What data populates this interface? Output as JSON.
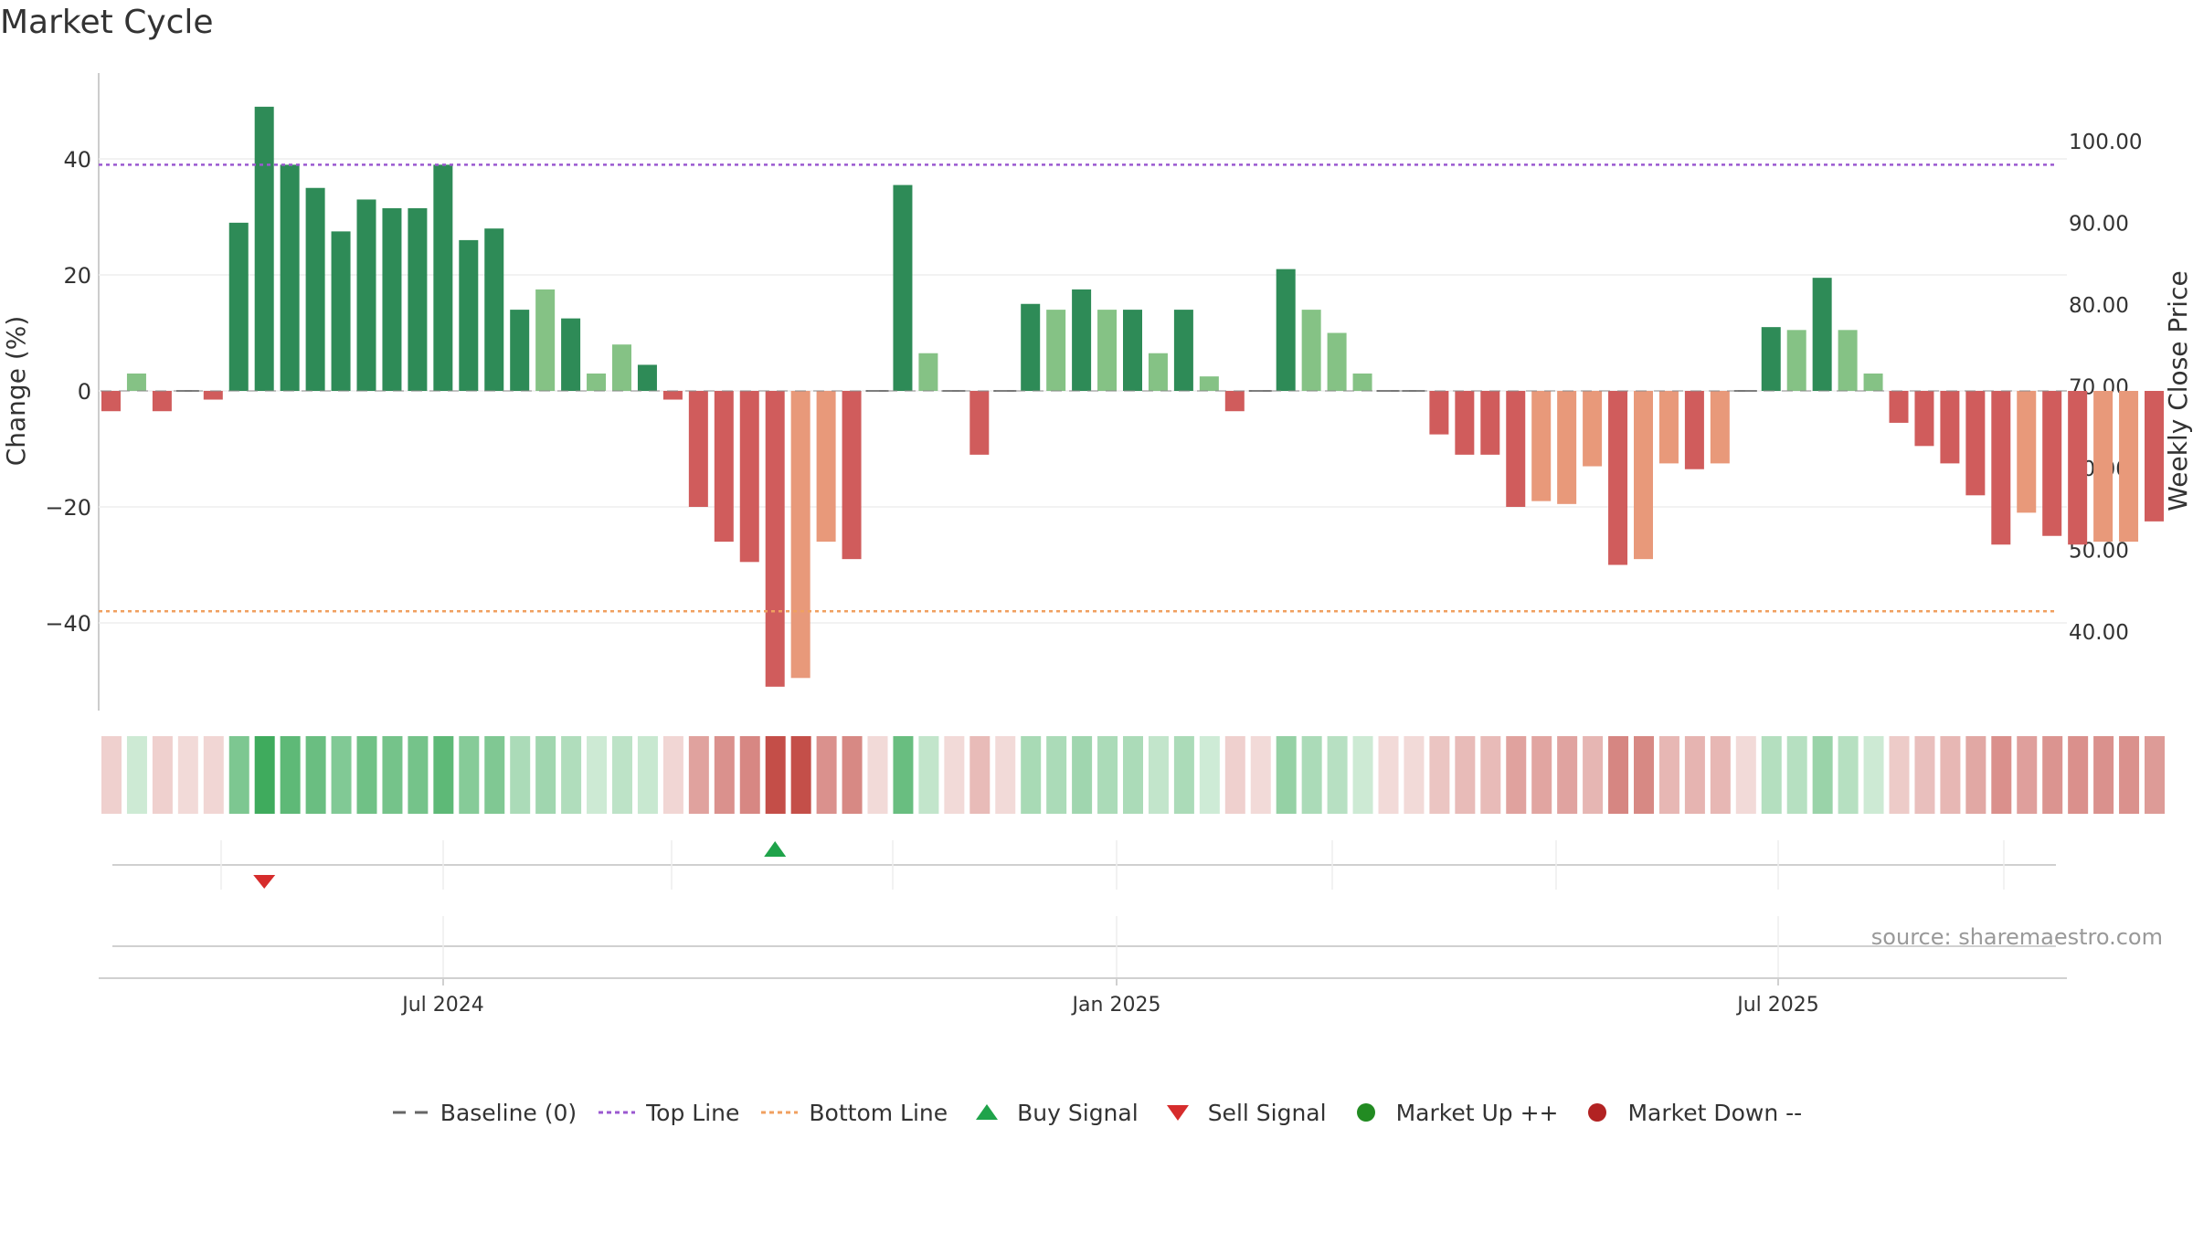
{
  "title": "Market Cycle",
  "source": "source: sharemaestro.com",
  "chart_data": {
    "type": "bar",
    "ylabel_left": "Change (%)",
    "ylabel_right": "Weekly Close Price",
    "ylim_left": [
      -55,
      55
    ],
    "ylim_right": [
      30,
      110
    ],
    "y_ticks_left": [
      "40",
      "20",
      "0",
      "−20",
      "−40"
    ],
    "y_ticks_right": [
      "100.00",
      "90.00",
      "80.00",
      "70.00",
      "60.00",
      "50.00",
      "40.00"
    ],
    "x_ticks": [
      "Jul 2024",
      "Jan 2025",
      "Jul 2025"
    ],
    "top_line": 39,
    "bottom_line": -38,
    "series": [
      {
        "values": [
          -3.5,
          3,
          -3.5,
          0,
          -1.5,
          29,
          49,
          39,
          35,
          27.5,
          33,
          31.5,
          31.5,
          39,
          26,
          28,
          14,
          17.5,
          12.5,
          3,
          8,
          4.5,
          -1.5,
          -20,
          -26,
          -29.5,
          -51,
          -49.5,
          -26,
          -29,
          0,
          35.5,
          6.5,
          0,
          -11,
          0,
          15,
          14,
          17.5,
          14,
          14,
          6.5,
          14,
          2.5,
          -3.5,
          0,
          21,
          14,
          10,
          3,
          0,
          0,
          -7.5,
          -11,
          -11,
          -20,
          -19,
          -19.5,
          -13,
          -30,
          -29,
          -12.5,
          -13.5,
          -12.5,
          0,
          11,
          10.5,
          19.5,
          10.5,
          3,
          -5.5,
          -9.5,
          -12.5,
          -18,
          -26.5,
          -21,
          -25,
          -26.5,
          -26,
          -26,
          -22.5
        ]
      }
    ],
    "signals": [
      {
        "type": "Sell Signal",
        "bar_index": 6
      },
      {
        "type": "Buy Signal",
        "bar_index": 26
      }
    ],
    "colors": {
      "strong_up": "#2e8b57",
      "up": "#85c285",
      "down": "#d05c5c",
      "weak_down": "#e8997a",
      "top_line": "#9b59d0",
      "bottom_line": "#f0a060",
      "buy": "#1fa34a",
      "sell": "#d62c2c",
      "market_up": "#228b22",
      "market_down": "#b22222"
    }
  },
  "legend": [
    {
      "label": "Baseline (0)",
      "icon": "dashed-gray-line"
    },
    {
      "label": "Top Line",
      "icon": "dotted-purple-line"
    },
    {
      "label": "Bottom Line",
      "icon": "dotted-orange-line"
    },
    {
      "label": "Buy Signal",
      "icon": "green-triangle-up"
    },
    {
      "label": "Sell Signal",
      "icon": "red-triangle-down"
    },
    {
      "label": "Market Up ++",
      "icon": "green-circle"
    },
    {
      "label": "Market Down --",
      "icon": "red-circle"
    }
  ]
}
